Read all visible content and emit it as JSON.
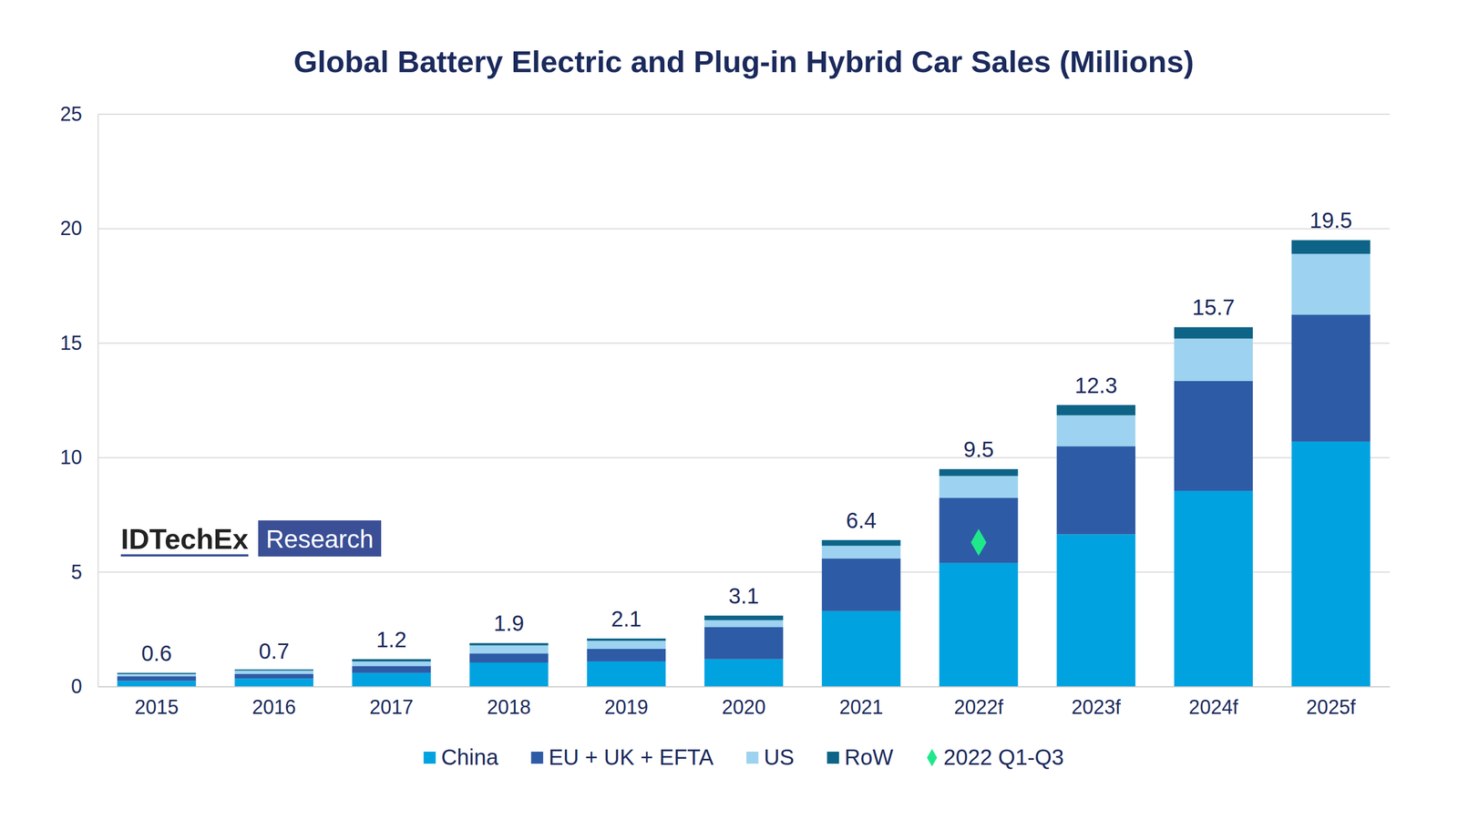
{
  "chart_data": {
    "type": "bar",
    "title": "Global Battery Electric and Plug-in Hybrid Car Sales (Millions)",
    "stacked": true,
    "grid": true,
    "legend": "bottom",
    "categories": [
      "2015",
      "2016",
      "2017",
      "2018",
      "2019",
      "2020",
      "2021",
      "2022f",
      "2023f",
      "2024f",
      "2025f"
    ],
    "series": [
      {
        "name": "China",
        "color": "#00a3e0",
        "values": [
          0.25,
          0.35,
          0.6,
          1.05,
          1.1,
          1.2,
          3.3,
          5.4,
          6.65,
          8.55,
          10.7
        ]
      },
      {
        "name": "EU + UK + EFTA",
        "color": "#2e5ba6",
        "values": [
          0.2,
          0.2,
          0.3,
          0.4,
          0.55,
          1.4,
          2.3,
          2.85,
          3.85,
          4.8,
          5.55
        ]
      },
      {
        "name": "US",
        "color": "#9dd3f0",
        "values": [
          0.1,
          0.15,
          0.2,
          0.35,
          0.35,
          0.3,
          0.55,
          0.95,
          1.35,
          1.85,
          2.65
        ]
      },
      {
        "name": "RoW",
        "color": "#0d6487",
        "values": [
          0.05,
          0.05,
          0.1,
          0.1,
          0.1,
          0.2,
          0.25,
          0.3,
          0.45,
          0.5,
          0.6
        ]
      },
      {
        "name": "2022 Q1-Q3",
        "type": "scatter",
        "marker": "diamond",
        "color": "#1fe88a",
        "values": [
          null,
          null,
          null,
          null,
          null,
          null,
          null,
          6.3,
          null,
          null,
          null
        ]
      }
    ],
    "totals": [
      0.6,
      0.7,
      1.2,
      1.9,
      2.1,
      3.1,
      6.4,
      9.5,
      12.3,
      15.7,
      19.5
    ],
    "ylim": [
      0,
      25
    ],
    "yticks": [
      0,
      5,
      10,
      15,
      20,
      25
    ],
    "annotations": [
      "IDTechEx",
      "Research"
    ]
  }
}
